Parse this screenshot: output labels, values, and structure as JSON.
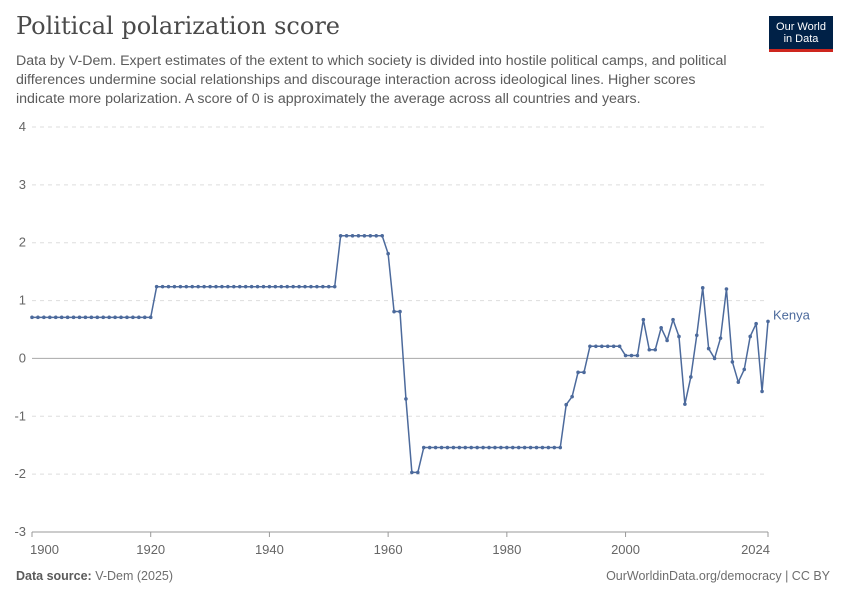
{
  "header": {
    "title": "Political polarization score",
    "subtitle": "Data by V-Dem. Expert estimates of the extent to which society is divided into hostile political camps, and political differences undermine social relationships and discourage interaction across ideological lines. Higher scores indicate more polarization. A score of 0 is approximately the average across all countries and years.",
    "logo_line1": "Our World",
    "logo_line2": "in Data"
  },
  "footer": {
    "source_label": "Data source:",
    "source_value": "V-Dem (2025)",
    "link": "OurWorldinData.org/democracy | CC BY"
  },
  "colors": {
    "series": "#4c6a9c",
    "grid": "#dddddd",
    "zero_line": "#a8a8a8",
    "logo_bg": "#002147",
    "logo_accent": "#ce261e"
  },
  "chart_data": {
    "type": "line",
    "title": "Political polarization score",
    "xlabel": "",
    "ylabel": "",
    "xlim": [
      1900,
      2024
    ],
    "ylim": [
      -3,
      4
    ],
    "x_ticks": [
      "1900",
      "1920",
      "1940",
      "1960",
      "1980",
      "2000",
      "2024"
    ],
    "y_ticks": [
      "4",
      "3",
      "2",
      "1",
      "0",
      "-1",
      "-2",
      "-3"
    ],
    "grid": true,
    "series": [
      {
        "name": "Kenya",
        "x": [
          1900,
          1901,
          1902,
          1903,
          1904,
          1905,
          1906,
          1907,
          1908,
          1909,
          1910,
          1911,
          1912,
          1913,
          1914,
          1915,
          1916,
          1917,
          1918,
          1919,
          1920,
          1921,
          1922,
          1923,
          1924,
          1925,
          1926,
          1927,
          1928,
          1929,
          1930,
          1931,
          1932,
          1933,
          1934,
          1935,
          1936,
          1937,
          1938,
          1939,
          1940,
          1941,
          1942,
          1943,
          1944,
          1945,
          1946,
          1947,
          1948,
          1949,
          1950,
          1951,
          1952,
          1953,
          1954,
          1955,
          1956,
          1957,
          1958,
          1959,
          1960,
          1961,
          1962,
          1963,
          1964,
          1965,
          1966,
          1967,
          1968,
          1969,
          1970,
          1971,
          1972,
          1973,
          1974,
          1975,
          1976,
          1977,
          1978,
          1979,
          1980,
          1981,
          1982,
          1983,
          1984,
          1985,
          1986,
          1987,
          1988,
          1989,
          1990,
          1991,
          1992,
          1993,
          1994,
          1995,
          1996,
          1997,
          1998,
          1999,
          2000,
          2001,
          2002,
          2003,
          2004,
          2005,
          2006,
          2007,
          2008,
          2009,
          2010,
          2011,
          2012,
          2013,
          2014,
          2015,
          2016,
          2017,
          2018,
          2019,
          2020,
          2021,
          2022,
          2023,
          2024
        ],
        "values": [
          0.71,
          0.71,
          0.71,
          0.71,
          0.71,
          0.71,
          0.71,
          0.71,
          0.71,
          0.71,
          0.71,
          0.71,
          0.71,
          0.71,
          0.71,
          0.71,
          0.71,
          0.71,
          0.71,
          0.71,
          0.71,
          1.24,
          1.24,
          1.24,
          1.24,
          1.24,
          1.24,
          1.24,
          1.24,
          1.24,
          1.24,
          1.24,
          1.24,
          1.24,
          1.24,
          1.24,
          1.24,
          1.24,
          1.24,
          1.24,
          1.24,
          1.24,
          1.24,
          1.24,
          1.24,
          1.24,
          1.24,
          1.24,
          1.24,
          1.24,
          1.24,
          1.24,
          2.12,
          2.12,
          2.12,
          2.12,
          2.12,
          2.12,
          2.12,
          2.12,
          1.81,
          0.81,
          0.81,
          -0.7,
          -1.97,
          -1.97,
          -1.54,
          -1.54,
          -1.54,
          -1.54,
          -1.54,
          -1.54,
          -1.54,
          -1.54,
          -1.54,
          -1.54,
          -1.54,
          -1.54,
          -1.54,
          -1.54,
          -1.54,
          -1.54,
          -1.54,
          -1.54,
          -1.54,
          -1.54,
          -1.54,
          -1.54,
          -1.54,
          -1.54,
          -0.8,
          -0.66,
          -0.24,
          -0.24,
          0.21,
          0.21,
          0.21,
          0.21,
          0.21,
          0.21,
          0.05,
          0.05,
          0.05,
          0.67,
          0.15,
          0.15,
          0.53,
          0.31,
          0.67,
          0.38,
          -0.79,
          -0.32,
          0.4,
          1.22,
          0.17,
          0.0,
          0.35,
          1.2,
          -0.06,
          -0.41,
          -0.19,
          0.38,
          0.6,
          -0.57,
          0.64
        ]
      }
    ]
  }
}
